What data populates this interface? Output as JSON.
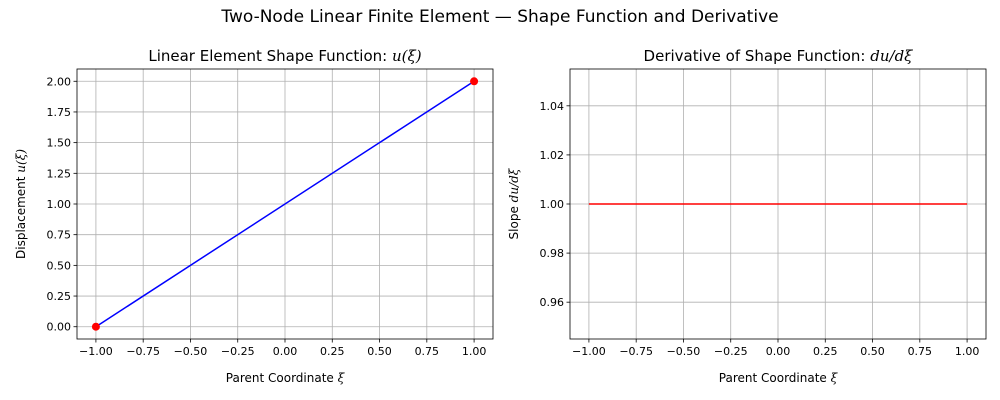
{
  "figure": {
    "suptitle": "Two-Node Linear Finite Element — Shape Function and Derivative"
  },
  "chart_data": [
    {
      "type": "line",
      "title": "Linear Element Shape Function: ",
      "title_math": "u(ξ)",
      "xlabel": "Parent Coordinate ",
      "xlabel_math": "ξ",
      "ylabel": "Displacement ",
      "ylabel_math": "u(ξ)",
      "xlim": [
        -1.1,
        1.1
      ],
      "ylim": [
        -0.1,
        2.1
      ],
      "x_ticks": [
        -1.0,
        -0.75,
        -0.5,
        -0.25,
        0.0,
        0.25,
        0.5,
        0.75,
        1.0
      ],
      "x_tick_labels": [
        "−1.00",
        "−0.75",
        "−0.50",
        "−0.25",
        "0.00",
        "0.25",
        "0.50",
        "0.75",
        "1.00"
      ],
      "y_ticks": [
        0.0,
        0.25,
        0.5,
        0.75,
        1.0,
        1.25,
        1.5,
        1.75,
        2.0
      ],
      "y_tick_labels": [
        "0.00",
        "0.25",
        "0.50",
        "0.75",
        "1.00",
        "1.25",
        "1.50",
        "1.75",
        "2.00"
      ],
      "grid": true,
      "series": [
        {
          "x": [
            -1.0,
            1.0
          ],
          "y": [
            0.0,
            2.0
          ],
          "color": "#0000ff",
          "style": "line"
        },
        {
          "x": [
            -1.0,
            1.0
          ],
          "y": [
            0.0,
            2.0
          ],
          "color": "#ff0000",
          "style": "markers"
        }
      ]
    },
    {
      "type": "line",
      "title": "Derivative of Shape Function: ",
      "title_math": "du/dξ",
      "xlabel": "Parent Coordinate ",
      "xlabel_math": "ξ",
      "ylabel": "Slope ",
      "ylabel_math": "du/dξ",
      "xlim": [
        -1.1,
        1.1
      ],
      "ylim": [
        0.945,
        1.055
      ],
      "x_ticks": [
        -1.0,
        -0.75,
        -0.5,
        -0.25,
        0.0,
        0.25,
        0.5,
        0.75,
        1.0
      ],
      "x_tick_labels": [
        "−1.00",
        "−0.75",
        "−0.50",
        "−0.25",
        "0.00",
        "0.25",
        "0.50",
        "0.75",
        "1.00"
      ],
      "y_ticks": [
        0.96,
        0.98,
        1.0,
        1.02,
        1.04
      ],
      "y_tick_labels": [
        "0.96",
        "0.98",
        "1.00",
        "1.02",
        "1.04"
      ],
      "grid": true,
      "series": [
        {
          "x": [
            -1.0,
            1.0
          ],
          "y": [
            1.0,
            1.0
          ],
          "color": "#ff0000",
          "style": "line"
        }
      ]
    }
  ]
}
